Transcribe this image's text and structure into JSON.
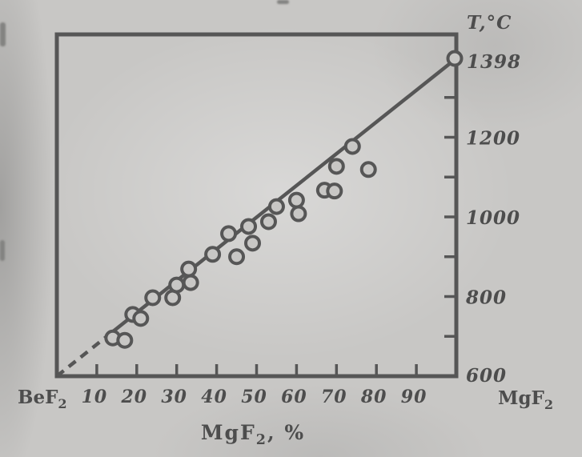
{
  "figure": {
    "paper_color": "#c8c7c5",
    "ink_color": "#565656",
    "text_color": "#4d4d4d",
    "description": "Scanned chart of liquidus temperature versus MgF2 content for the BeF2-MgF2 system"
  },
  "chart_data": {
    "type": "scatter",
    "title": "",
    "ylabel": "T,°C",
    "y_top_point_label": "1398",
    "xlabel_segments": [
      {
        "t": "MgF"
      },
      {
        "t": "2",
        "sub": true
      },
      {
        "t": ", %"
      }
    ],
    "x_corner_left_segments": [
      {
        "t": "BeF"
      },
      {
        "t": "2",
        "sub": true
      }
    ],
    "x_corner_right_segments": [
      {
        "t": "MgF"
      },
      {
        "t": "2",
        "sub": true
      }
    ],
    "xlim": [
      0,
      100
    ],
    "ylim": [
      600,
      1398
    ],
    "grid": false,
    "legend": false,
    "x_ticks": [
      {
        "v": 10,
        "label": "10"
      },
      {
        "v": 20,
        "label": "20"
      },
      {
        "v": 30,
        "label": "30"
      },
      {
        "v": 40,
        "label": "40"
      },
      {
        "v": 50,
        "label": "50"
      },
      {
        "v": 60,
        "label": "60"
      },
      {
        "v": 70,
        "label": "70"
      },
      {
        "v": 80,
        "label": "80"
      },
      {
        "v": 90,
        "label": "90"
      }
    ],
    "y_ticks": [
      {
        "v": 600,
        "label": "600",
        "tick": false
      },
      {
        "v": 700,
        "label": "",
        "tick": true
      },
      {
        "v": 800,
        "label": "800",
        "tick": true
      },
      {
        "v": 900,
        "label": "",
        "tick": true
      },
      {
        "v": 1000,
        "label": "1000",
        "tick": true
      },
      {
        "v": 1100,
        "label": "",
        "tick": true
      },
      {
        "v": 1200,
        "label": "1200",
        "tick": true
      },
      {
        "v": 1300,
        "label": "",
        "tick": true
      }
    ],
    "line": {
      "x_start": 0,
      "t_start": 600,
      "x_end": 100,
      "t_end": 1398,
      "dashed_until_x": 13
    },
    "points": [
      [
        14,
        696
      ],
      [
        17,
        690
      ],
      [
        19,
        755
      ],
      [
        21,
        745
      ],
      [
        24,
        797
      ],
      [
        29,
        797
      ],
      [
        30,
        829
      ],
      [
        33,
        869
      ],
      [
        33.5,
        835
      ],
      [
        39,
        906
      ],
      [
        43,
        958
      ],
      [
        45,
        900
      ],
      [
        48,
        976
      ],
      [
        49,
        934
      ],
      [
        53,
        988
      ],
      [
        55,
        1026
      ],
      [
        60,
        1042
      ],
      [
        60.5,
        1008
      ],
      [
        67,
        1067
      ],
      [
        69.5,
        1065
      ],
      [
        70,
        1127
      ],
      [
        74,
        1177
      ],
      [
        78,
        1119
      ],
      [
        99.6,
        1398
      ]
    ]
  }
}
